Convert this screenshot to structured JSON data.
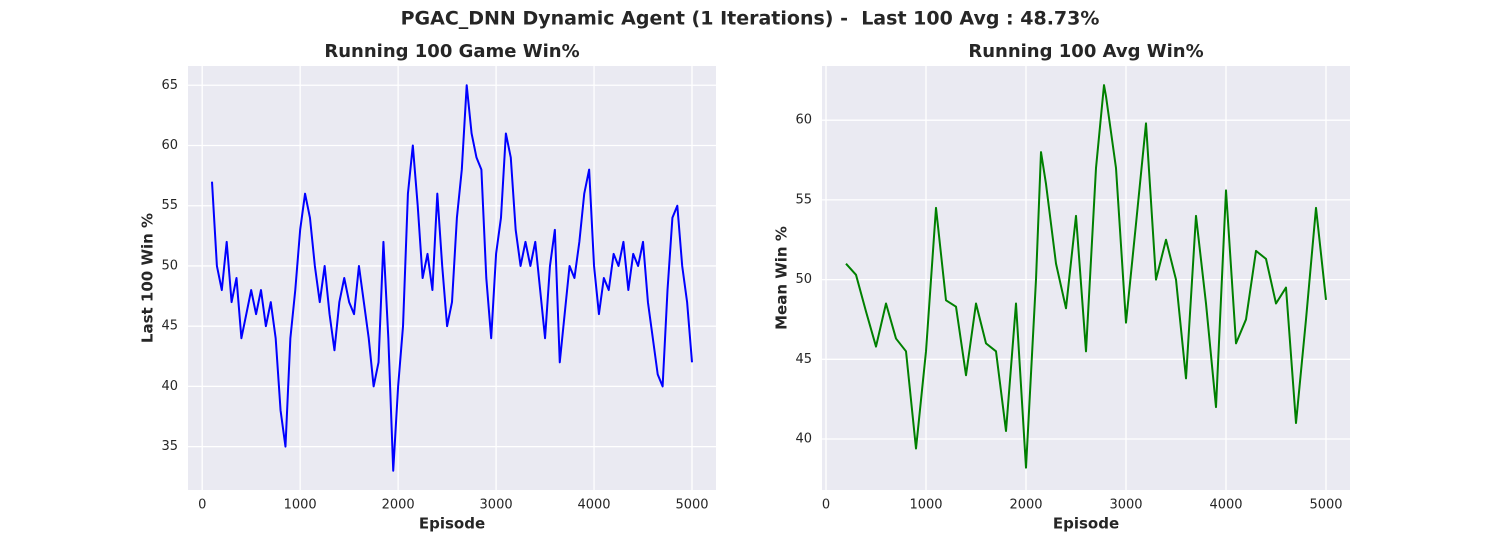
{
  "title": "PGAC_DNN Dynamic Agent (1 Iterations) -  Last 100 Avg : 48.73%",
  "chart_data": [
    {
      "type": "line",
      "title": "Running 100 Game Win%",
      "x_label": "Episode",
      "y_label": "Last 100 Win %",
      "xlim": [
        -145,
        5245
      ],
      "ylim": [
        31.4,
        66.6
      ],
      "xticks": [
        0,
        1000,
        2000,
        3000,
        4000,
        5000
      ],
      "yticks": [
        35,
        40,
        45,
        50,
        55,
        60,
        65
      ],
      "grid": true,
      "x": [
        100,
        150,
        200,
        250,
        300,
        350,
        400,
        450,
        500,
        550,
        600,
        650,
        700,
        750,
        800,
        850,
        900,
        950,
        1000,
        1050,
        1100,
        1150,
        1200,
        1250,
        1300,
        1350,
        1400,
        1450,
        1500,
        1550,
        1600,
        1650,
        1700,
        1750,
        1800,
        1850,
        1900,
        1950,
        2000,
        2050,
        2100,
        2150,
        2200,
        2250,
        2300,
        2350,
        2400,
        2450,
        2500,
        2550,
        2600,
        2650,
        2700,
        2750,
        2800,
        2850,
        2900,
        2950,
        3000,
        3050,
        3100,
        3150,
        3200,
        3250,
        3300,
        3350,
        3400,
        3450,
        3500,
        3550,
        3600,
        3650,
        3700,
        3750,
        3800,
        3850,
        3900,
        3950,
        4000,
        4050,
        4100,
        4150,
        4200,
        4250,
        4300,
        4350,
        4400,
        4450,
        4500,
        4550,
        4600,
        4650,
        4700,
        4750,
        4800,
        4850,
        4900,
        4950,
        5000
      ],
      "series": [
        {
          "name": "Last 100 Win %",
          "color": "#0000ff",
          "values": [
            57,
            50,
            48,
            52,
            47,
            49,
            44,
            46,
            48,
            46,
            48,
            45,
            47,
            44,
            38,
            35,
            44,
            48,
            53,
            56,
            54,
            50,
            47,
            50,
            46,
            43,
            47,
            49,
            47,
            46,
            50,
            47,
            44,
            40,
            42,
            52,
            44,
            33,
            40,
            45,
            56,
            60,
            55,
            49,
            51,
            48,
            56,
            50,
            45,
            47,
            54,
            58,
            65,
            61,
            59,
            58,
            49,
            44,
            51,
            54,
            61,
            59,
            53,
            50,
            52,
            50,
            52,
            48,
            44,
            50,
            53,
            42,
            46,
            50,
            49,
            52,
            56,
            58,
            50,
            46,
            49,
            48,
            51,
            50,
            52,
            48,
            51,
            50,
            52,
            47,
            44,
            41,
            40,
            48,
            54,
            55,
            50,
            47,
            42
          ]
        }
      ]
    },
    {
      "type": "line",
      "title": "Running 100 Avg Win%",
      "x_label": "Episode",
      "y_label": "Mean Win %",
      "xlim": [
        -40,
        5240
      ],
      "ylim": [
        36.8,
        63.4
      ],
      "xticks": [
        0,
        1000,
        2000,
        3000,
        4000,
        5000
      ],
      "yticks": [
        40,
        45,
        50,
        55,
        60
      ],
      "grid": true,
      "x": [
        200,
        300,
        400,
        500,
        600,
        700,
        800,
        900,
        1000,
        1100,
        1200,
        1300,
        1400,
        1500,
        1600,
        1700,
        1800,
        1900,
        2000,
        2100,
        2150,
        2200,
        2300,
        2400,
        2500,
        2600,
        2700,
        2780,
        2800,
        2900,
        3000,
        3100,
        3200,
        3300,
        3400,
        3500,
        3600,
        3700,
        3800,
        3900,
        4000,
        4100,
        4200,
        4300,
        4400,
        4500,
        4600,
        4700,
        4800,
        4900,
        5000
      ],
      "series": [
        {
          "name": "Mean Win %",
          "color": "#008000",
          "values": [
            51,
            50.3,
            48,
            45.8,
            48.5,
            46.3,
            45.5,
            39.4,
            45.5,
            54.5,
            48.7,
            48.3,
            44,
            48.5,
            46,
            45.5,
            40.5,
            48.5,
            38.2,
            50,
            58,
            56,
            51,
            48.2,
            54,
            45.5,
            57,
            62.2,
            61.5,
            57,
            47.3,
            53.5,
            59.8,
            50,
            52.5,
            50,
            43.8,
            54,
            48.5,
            42,
            55.6,
            46,
            47.5,
            51.8,
            51.3,
            48.5,
            49.5,
            41,
            47.5,
            54.5,
            48.73
          ]
        }
      ]
    }
  ]
}
